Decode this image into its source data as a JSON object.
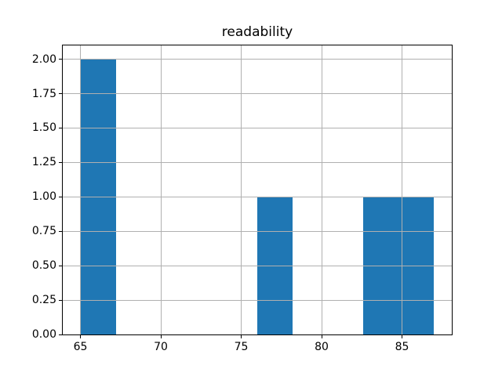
{
  "title": "readability",
  "chart_data": {
    "type": "bar",
    "subtype": "histogram",
    "title": "readability",
    "xlabel": "",
    "ylabel": "",
    "bin_edges": [
      65.0,
      67.2,
      69.4,
      71.6,
      73.8,
      76.0,
      78.2,
      80.4,
      82.6,
      84.8,
      87.0
    ],
    "counts": [
      2,
      0,
      0,
      0,
      0,
      1,
      0,
      0,
      1,
      1
    ],
    "xlim": [
      63.9,
      88.1
    ],
    "ylim": [
      0,
      2.1
    ],
    "x_ticks": [
      65,
      70,
      75,
      80,
      85
    ],
    "x_tick_labels": [
      "65",
      "70",
      "75",
      "80",
      "85"
    ],
    "y_ticks": [
      0,
      0.25,
      0.5,
      0.75,
      1.0,
      1.25,
      1.5,
      1.75,
      2.0
    ],
    "y_tick_labels": [
      "0.00",
      "0.25",
      "0.50",
      "0.75",
      "1.00",
      "1.25",
      "1.50",
      "1.75",
      "2.00"
    ],
    "grid": true,
    "grid_above_bars": true,
    "legend": null,
    "colors": {
      "bar": "#1f77b4",
      "grid": "#b0b0b0",
      "spine": "#000000",
      "background": "#ffffff",
      "text": "#000000"
    }
  }
}
